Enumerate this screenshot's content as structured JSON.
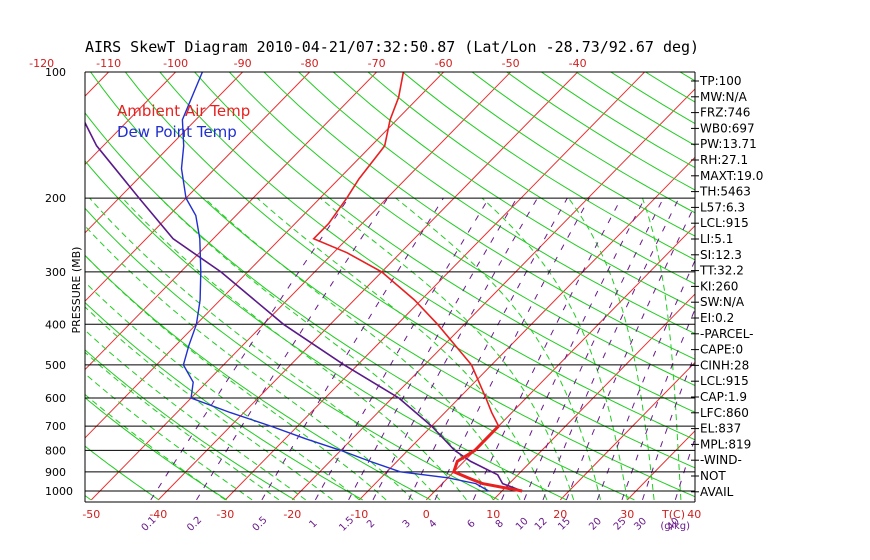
{
  "chart_data": {
    "type": "line",
    "title": "AIRS SkewT Diagram 2010-04-21/07:32:50.87 (Lat/Lon -28.73/92.67 deg)",
    "ylabel": "PRESSURE (MB)",
    "y_scale": "log",
    "ylim": [
      1050,
      100
    ],
    "pressure_ticks": [
      100,
      200,
      300,
      400,
      500,
      600,
      700,
      800,
      900,
      1000
    ],
    "bottom_temp_ticks": [
      -50,
      -40,
      -30,
      -20,
      -10,
      0,
      10,
      20,
      30,
      40
    ],
    "bottom_temp_unit": "T(C)",
    "top_temp_ticks": [
      -120,
      -110,
      -100,
      -90,
      -80,
      -70,
      -60,
      -50,
      -40
    ],
    "mixing_ratio_labels": [
      "0.1",
      "0.2",
      "0.5",
      "1",
      "1.5",
      "2",
      "3",
      "4",
      "6",
      "8",
      "10",
      "12",
      "15",
      "20",
      "25",
      "30",
      "40"
    ],
    "mixing_ratio_unit": "(g/kg)",
    "legend": [
      {
        "label": "Ambient Air Temp",
        "color": "#e82020"
      },
      {
        "label": "Dew Point Temp",
        "color": "#2030d0"
      }
    ],
    "series": [
      {
        "name": "Ambient Air Temp",
        "color": "#e82020",
        "points": [
          [
            1000,
            13
          ],
          [
            960,
            6
          ],
          [
            930,
            3
          ],
          [
            900,
            0
          ],
          [
            850,
            -1
          ],
          [
            800,
            0
          ],
          [
            750,
            0
          ],
          [
            700,
            0
          ],
          [
            650,
            -3
          ],
          [
            600,
            -6
          ],
          [
            500,
            -13
          ],
          [
            400,
            -24
          ],
          [
            350,
            -31
          ],
          [
            300,
            -40
          ],
          [
            270,
            -48
          ],
          [
            250,
            -55
          ],
          [
            230,
            -55
          ],
          [
            200,
            -56
          ],
          [
            180,
            -57
          ],
          [
            150,
            -58
          ],
          [
            130,
            -61
          ],
          [
            115,
            -63
          ],
          [
            100,
            -66
          ]
        ]
      },
      {
        "name": "Dew Point Temp",
        "color": "#2030d0",
        "points": [
          [
            1000,
            8
          ],
          [
            960,
            5
          ],
          [
            930,
            0
          ],
          [
            900,
            -8
          ],
          [
            850,
            -14
          ],
          [
            800,
            -20
          ],
          [
            750,
            -27
          ],
          [
            700,
            -34
          ],
          [
            650,
            -42
          ],
          [
            600,
            -50
          ],
          [
            550,
            -52
          ],
          [
            500,
            -56
          ],
          [
            450,
            -58
          ],
          [
            400,
            -60
          ],
          [
            350,
            -63
          ],
          [
            300,
            -67
          ],
          [
            250,
            -72
          ],
          [
            220,
            -76
          ],
          [
            200,
            -80
          ],
          [
            170,
            -85
          ],
          [
            150,
            -88
          ],
          [
            130,
            -92
          ],
          [
            100,
            -96
          ]
        ]
      }
    ],
    "parcel_curve": {
      "color": "#5a1a8a",
      "points": [
        [
          1000,
          13
        ],
        [
          960,
          9
        ],
        [
          915,
          7
        ],
        [
          850,
          1
        ],
        [
          800,
          -3
        ],
        [
          700,
          -10
        ],
        [
          600,
          -19
        ],
        [
          500,
          -32
        ],
        [
          400,
          -47
        ],
        [
          300,
          -64
        ],
        [
          250,
          -76
        ],
        [
          200,
          -87
        ],
        [
          150,
          -101
        ],
        [
          120,
          -110
        ],
        [
          100,
          -116
        ]
      ]
    },
    "indices": [
      "TP:100",
      "MW:N/A",
      "FRZ:746",
      "WB0:697",
      "PW:13.71",
      "RH:27.1",
      "MAXT:19.0",
      "TH:5463",
      "L57:6.3",
      "LCL:915",
      "LI:5.1",
      "SI:12.3",
      "TT:32.2",
      "KI:260",
      "SW:N/A",
      "EI:0.2",
      "-PARCEL-",
      "CAPE:0",
      "CINH:28",
      "LCL:915",
      "CAP:1.9",
      "LFC:860",
      "EL:837",
      "MPL:819",
      "-WIND-",
      "NOT",
      "AVAIL"
    ],
    "colors": {
      "isotherm": "#e83030",
      "dry_adiabat": "#22cc22",
      "moist_adiabat": "#22cc22",
      "mixing_ratio": "#6a1a8a",
      "isobar": "#000000"
    }
  }
}
